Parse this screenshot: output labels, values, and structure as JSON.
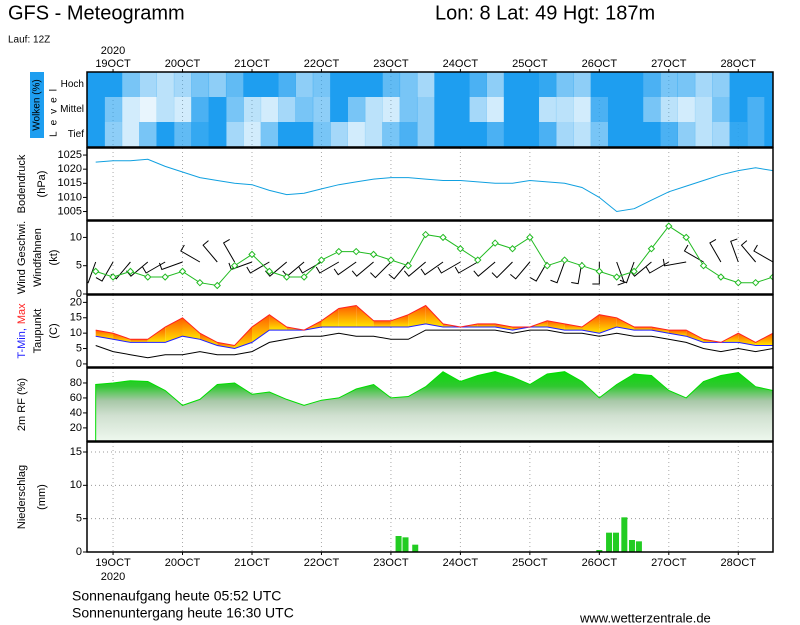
{
  "header": {
    "title": "GFS - Meteogramm",
    "location": "Lon: 8 Lat: 49 Hgt: 187m",
    "run": "Lauf: 12Z"
  },
  "chart_data": [
    {
      "type": "heatmap",
      "ylabel": "Wolken (%)",
      "level_label": "Level",
      "year": "2020",
      "color": "#1e9ef0",
      "x": [
        18.75,
        19,
        19.25,
        19.5,
        19.75,
        20,
        20.25,
        20.5,
        20.75,
        21,
        21.25,
        21.5,
        21.75,
        22,
        22.25,
        22.5,
        22.75,
        23,
        23.25,
        23.5,
        23.75,
        24,
        24.25,
        24.5,
        24.75,
        25,
        25.25,
        25.5,
        25.75,
        26,
        26.25,
        26.5,
        26.75,
        27,
        27.25,
        27.5,
        27.75,
        28,
        28.25,
        28.5
      ],
      "xlim": [
        18.625,
        28.5
      ],
      "xticks": [
        {
          "value": 19,
          "label": "19OCT"
        },
        {
          "value": 20,
          "label": "20OCT"
        },
        {
          "value": 21,
          "label": "21OCT"
        },
        {
          "value": 22,
          "label": "22OCT"
        },
        {
          "value": 23,
          "label": "23OCT"
        },
        {
          "value": 24,
          "label": "24OCT"
        },
        {
          "value": 25,
          "label": "25OCT"
        },
        {
          "value": 26,
          "label": "26OCT"
        },
        {
          "value": 27,
          "label": "27OCT"
        },
        {
          "value": 28,
          "label": "28OCT"
        }
      ],
      "series": [
        {
          "name": "Hoch",
          "values": [
            100,
            100,
            60,
            40,
            30,
            40,
            60,
            50,
            70,
            100,
            100,
            80,
            50,
            60,
            100,
            100,
            100,
            70,
            60,
            40,
            100,
            100,
            80,
            50,
            100,
            100,
            90,
            60,
            50,
            100,
            100,
            100,
            80,
            60,
            60,
            40,
            50,
            100,
            100,
            100
          ]
        },
        {
          "name": "Mittel",
          "values": [
            100,
            60,
            20,
            10,
            30,
            20,
            80,
            100,
            60,
            30,
            20,
            40,
            60,
            50,
            100,
            60,
            30,
            20,
            60,
            50,
            100,
            100,
            40,
            20,
            100,
            100,
            30,
            30,
            20,
            80,
            100,
            100,
            60,
            30,
            20,
            30,
            60,
            100,
            80,
            100
          ]
        },
        {
          "name": "Tief",
          "values": [
            100,
            50,
            20,
            60,
            100,
            70,
            90,
            100,
            40,
            20,
            60,
            100,
            100,
            60,
            40,
            20,
            30,
            60,
            80,
            50,
            100,
            100,
            100,
            80,
            100,
            100,
            80,
            40,
            30,
            60,
            100,
            100,
            100,
            80,
            50,
            30,
            40,
            90,
            80,
            100
          ]
        }
      ]
    },
    {
      "type": "line",
      "ylabel": "Bodendruck",
      "yunit": "(hPa)",
      "color": "#10a0e0",
      "x": [
        18.75,
        19,
        19.25,
        19.5,
        19.75,
        20,
        20.25,
        20.5,
        20.75,
        21,
        21.25,
        21.5,
        21.75,
        22,
        22.25,
        22.5,
        22.75,
        23,
        23.25,
        23.5,
        23.75,
        24,
        24.25,
        24.5,
        24.75,
        25,
        25.25,
        25.5,
        25.75,
        26,
        26.25,
        26.5,
        26.75,
        27,
        27.25,
        27.5,
        27.75,
        28,
        28.25,
        28.5
      ],
      "xlim": [
        18.625,
        28.5
      ],
      "ylim": [
        1002,
        1027.5
      ],
      "yticks": [
        1005,
        1010,
        1015,
        1020,
        1025
      ],
      "values": [
        1022.5,
        1023,
        1023,
        1023.5,
        1021,
        1019,
        1017,
        1016,
        1015,
        1014.5,
        1012.5,
        1011,
        1011.5,
        1013,
        1014.5,
        1015.5,
        1016.5,
        1017,
        1017,
        1016.5,
        1016,
        1016,
        1015.5,
        1015,
        1015,
        1016,
        1015.5,
        1015,
        1013.5,
        1010,
        1005,
        1006,
        1009,
        1012,
        1014,
        1016,
        1018,
        1019.5,
        1020.5,
        1019.5
      ]
    },
    {
      "type": "wind",
      "yunit": "(kt)",
      "x": [
        18.75,
        19,
        19.25,
        19.5,
        19.75,
        20,
        20.25,
        20.5,
        20.75,
        21,
        21.25,
        21.5,
        21.75,
        22,
        22.25,
        22.5,
        22.75,
        23,
        23.25,
        23.5,
        23.75,
        24,
        24.25,
        24.5,
        24.75,
        25,
        25.25,
        25.5,
        25.75,
        26,
        26.25,
        26.5,
        26.75,
        27,
        27.25,
        27.5,
        27.75,
        28,
        28.25,
        28.5
      ],
      "xlim": [
        18.625,
        28.5
      ],
      "ylim": [
        0,
        12.9
      ],
      "yticks": [
        0,
        5,
        10
      ],
      "series": [
        {
          "name": "Wind Geschwi.",
          "color": "#22bb22",
          "values": [
            4,
            3,
            4,
            3,
            3,
            4,
            2,
            1.5,
            5,
            7,
            4,
            3,
            3,
            6,
            7.5,
            7.5,
            7,
            6,
            5,
            10.5,
            10,
            8,
            6,
            9,
            8,
            10,
            5,
            6,
            5,
            4,
            3,
            4,
            8,
            12,
            10,
            5,
            3,
            2,
            2,
            3
          ]
        }
      ],
      "barbs": {
        "name": "Windfahnen",
        "color": "#000000",
        "values": [
          200,
          210,
          220,
          230,
          240,
          250,
          300,
          320,
          330,
          250,
          240,
          230,
          230,
          240,
          240,
          235,
          230,
          225,
          220,
          230,
          235,
          240,
          240,
          230,
          225,
          220,
          210,
          200,
          190,
          180,
          160,
          200,
          230,
          240,
          260,
          300,
          330,
          340,
          320,
          300
        ]
      }
    },
    {
      "type": "band",
      "yunit": "(C)",
      "fill_colors": [
        "#ff5a00",
        "#ffe600"
      ],
      "x": [
        18.75,
        19,
        19.25,
        19.5,
        19.75,
        20,
        20.25,
        20.5,
        20.75,
        21,
        21.25,
        21.5,
        21.75,
        22,
        22.25,
        22.5,
        22.75,
        23,
        23.25,
        23.5,
        23.75,
        24,
        24.25,
        24.5,
        24.75,
        25,
        25.25,
        25.5,
        25.75,
        26,
        26.25,
        26.5,
        26.75,
        27,
        27.25,
        27.5,
        27.75,
        28,
        28.25,
        28.5
      ],
      "xlim": [
        18.625,
        28.5
      ],
      "ylim": [
        -1,
        22.4
      ],
      "yticks": [
        0,
        5,
        10,
        15,
        20
      ],
      "series": [
        {
          "name": "T-Min,",
          "color": "#2020ff",
          "values": [
            9,
            8,
            7,
            7,
            7,
            9,
            8,
            6,
            5,
            7,
            11,
            11,
            11,
            12,
            12,
            12,
            12,
            12,
            12,
            13,
            12,
            12,
            12,
            12,
            11,
            12,
            12,
            11,
            11,
            10,
            12,
            11,
            11,
            10,
            9,
            7,
            7,
            7,
            6,
            6
          ]
        },
        {
          "name": "Max",
          "color": "#ff2020",
          "values": [
            11,
            10,
            8,
            8,
            12,
            15,
            10,
            7,
            6,
            12,
            16,
            12,
            11,
            14,
            18,
            19,
            14,
            14,
            16,
            19,
            13,
            12,
            13,
            13,
            12,
            12,
            14,
            13,
            12,
            16,
            15,
            12,
            12,
            11,
            11,
            8,
            7,
            10,
            7,
            10
          ]
        },
        {
          "name": "Taupunkt",
          "color": "#000000",
          "values": [
            6,
            4,
            3,
            2,
            3,
            3,
            4,
            3,
            3,
            4,
            7,
            8,
            9,
            9,
            10,
            9,
            9,
            8,
            8,
            11,
            11,
            11,
            11,
            11,
            10,
            11,
            11,
            10,
            10,
            9,
            10,
            9,
            9,
            8,
            7,
            5,
            4,
            5,
            4,
            5
          ]
        }
      ]
    },
    {
      "type": "area",
      "ylabel": "2m RF (%)",
      "color": "#00dd00",
      "x": [
        18.75,
        19,
        19.25,
        19.5,
        19.75,
        20,
        20.25,
        20.5,
        20.75,
        21,
        21.25,
        21.5,
        21.75,
        22,
        22.25,
        22.5,
        22.75,
        23,
        23.25,
        23.5,
        23.75,
        24,
        24.25,
        24.5,
        24.75,
        25,
        25.25,
        25.5,
        25.75,
        26,
        26.25,
        26.5,
        26.75,
        27,
        27.25,
        27.5,
        27.75,
        28,
        28.25,
        28.5
      ],
      "xlim": [
        18.625,
        28.5
      ],
      "ylim": [
        2.5,
        100
      ],
      "yticks": [
        20,
        40,
        60,
        80
      ],
      "values": [
        78,
        80,
        83,
        82,
        70,
        50,
        58,
        78,
        80,
        65,
        68,
        58,
        50,
        57,
        60,
        72,
        78,
        60,
        62,
        75,
        95,
        82,
        90,
        95,
        88,
        78,
        92,
        95,
        82,
        60,
        78,
        92,
        90,
        70,
        60,
        82,
        90,
        94,
        75,
        70
      ]
    },
    {
      "type": "bar",
      "ylabel": "Niederschlag",
      "yunit": "(mm)",
      "year": "2020",
      "color": "#22cc22",
      "grid": true,
      "x": [
        23.11,
        23.21,
        23.35,
        26.0,
        26.14,
        26.24,
        26.36,
        26.47,
        26.57
      ],
      "values": [
        2.4,
        2.2,
        1.1,
        0.3,
        2.9,
        2.9,
        5.2,
        1.8,
        1.6
      ],
      "xlim": [
        18.625,
        28.5
      ],
      "ylim": [
        0,
        16.5
      ],
      "yticks": [
        0,
        5,
        10,
        15
      ],
      "xticks": [
        {
          "value": 19,
          "label": "19OCT"
        },
        {
          "value": 20,
          "label": "20OCT"
        },
        {
          "value": 21,
          "label": "21OCT"
        },
        {
          "value": 22,
          "label": "22OCT"
        },
        {
          "value": 23,
          "label": "23OCT"
        },
        {
          "value": 24,
          "label": "24OCT"
        },
        {
          "value": 25,
          "label": "25OCT"
        },
        {
          "value": 26,
          "label": "26OCT"
        },
        {
          "value": 27,
          "label": "27OCT"
        },
        {
          "value": 28,
          "label": "28OCT"
        }
      ]
    }
  ],
  "footer": {
    "sunrise": "Sonnenaufgang heute 05:52 UTC",
    "sunset": "Sonnenuntergang heute 16:30 UTC",
    "source": "www.wetterzentrale.de"
  }
}
